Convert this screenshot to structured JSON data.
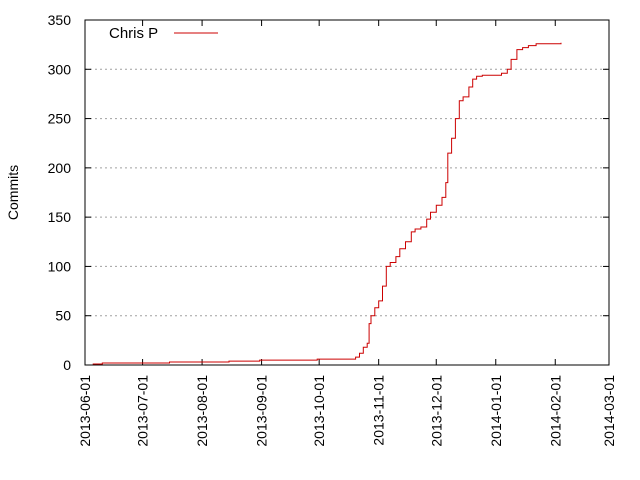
{
  "chart_data": {
    "type": "line",
    "title": "",
    "xlabel": "",
    "ylabel": "Commits",
    "x_axis_type": "date",
    "xlim": [
      "2013-06-01",
      "2014-03-01"
    ],
    "ylim": [
      0,
      350
    ],
    "x_ticks": [
      "2013-06-01",
      "2013-07-01",
      "2013-08-01",
      "2013-09-01",
      "2013-10-01",
      "2013-11-01",
      "2013-12-01",
      "2014-01-01",
      "2014-02-01",
      "2014-03-01"
    ],
    "y_ticks": [
      0,
      50,
      100,
      150,
      200,
      250,
      300,
      350
    ],
    "grid": true,
    "legend_position": "top-left",
    "series": [
      {
        "name": "Chris P",
        "color": "#cc0000",
        "line_style": "step",
        "points": [
          [
            "2013-06-05",
            1
          ],
          [
            "2013-06-10",
            2
          ],
          [
            "2013-07-08",
            2
          ],
          [
            "2013-07-15",
            3
          ],
          [
            "2013-08-03",
            3
          ],
          [
            "2013-08-15",
            4
          ],
          [
            "2013-08-31",
            5
          ],
          [
            "2013-09-20",
            5
          ],
          [
            "2013-09-30",
            6
          ],
          [
            "2013-10-17",
            6
          ],
          [
            "2013-10-20",
            8
          ],
          [
            "2013-10-22",
            12
          ],
          [
            "2013-10-24",
            18
          ],
          [
            "2013-10-26",
            22
          ],
          [
            "2013-10-27",
            42
          ],
          [
            "2013-10-28",
            50
          ],
          [
            "2013-10-30",
            58
          ],
          [
            "2013-11-01",
            65
          ],
          [
            "2013-11-03",
            80
          ],
          [
            "2013-11-05",
            100
          ],
          [
            "2013-11-07",
            104
          ],
          [
            "2013-11-10",
            110
          ],
          [
            "2013-11-12",
            118
          ],
          [
            "2013-11-15",
            125
          ],
          [
            "2013-11-18",
            135
          ],
          [
            "2013-11-20",
            138
          ],
          [
            "2013-11-23",
            140
          ],
          [
            "2013-11-26",
            148
          ],
          [
            "2013-11-28",
            155
          ],
          [
            "2013-12-01",
            162
          ],
          [
            "2013-12-04",
            170
          ],
          [
            "2013-12-06",
            185
          ],
          [
            "2013-12-07",
            215
          ],
          [
            "2013-12-09",
            230
          ],
          [
            "2013-12-11",
            250
          ],
          [
            "2013-12-13",
            268
          ],
          [
            "2013-12-15",
            272
          ],
          [
            "2013-12-18",
            282
          ],
          [
            "2013-12-20",
            290
          ],
          [
            "2013-12-22",
            293
          ],
          [
            "2013-12-25",
            294
          ],
          [
            "2014-01-04",
            296
          ],
          [
            "2014-01-07",
            300
          ],
          [
            "2014-01-09",
            310
          ],
          [
            "2014-01-12",
            320
          ],
          [
            "2014-01-15",
            322
          ],
          [
            "2014-01-18",
            324
          ],
          [
            "2014-01-22",
            326
          ],
          [
            "2014-01-28",
            326
          ],
          [
            "2014-02-04",
            327
          ]
        ]
      }
    ]
  }
}
